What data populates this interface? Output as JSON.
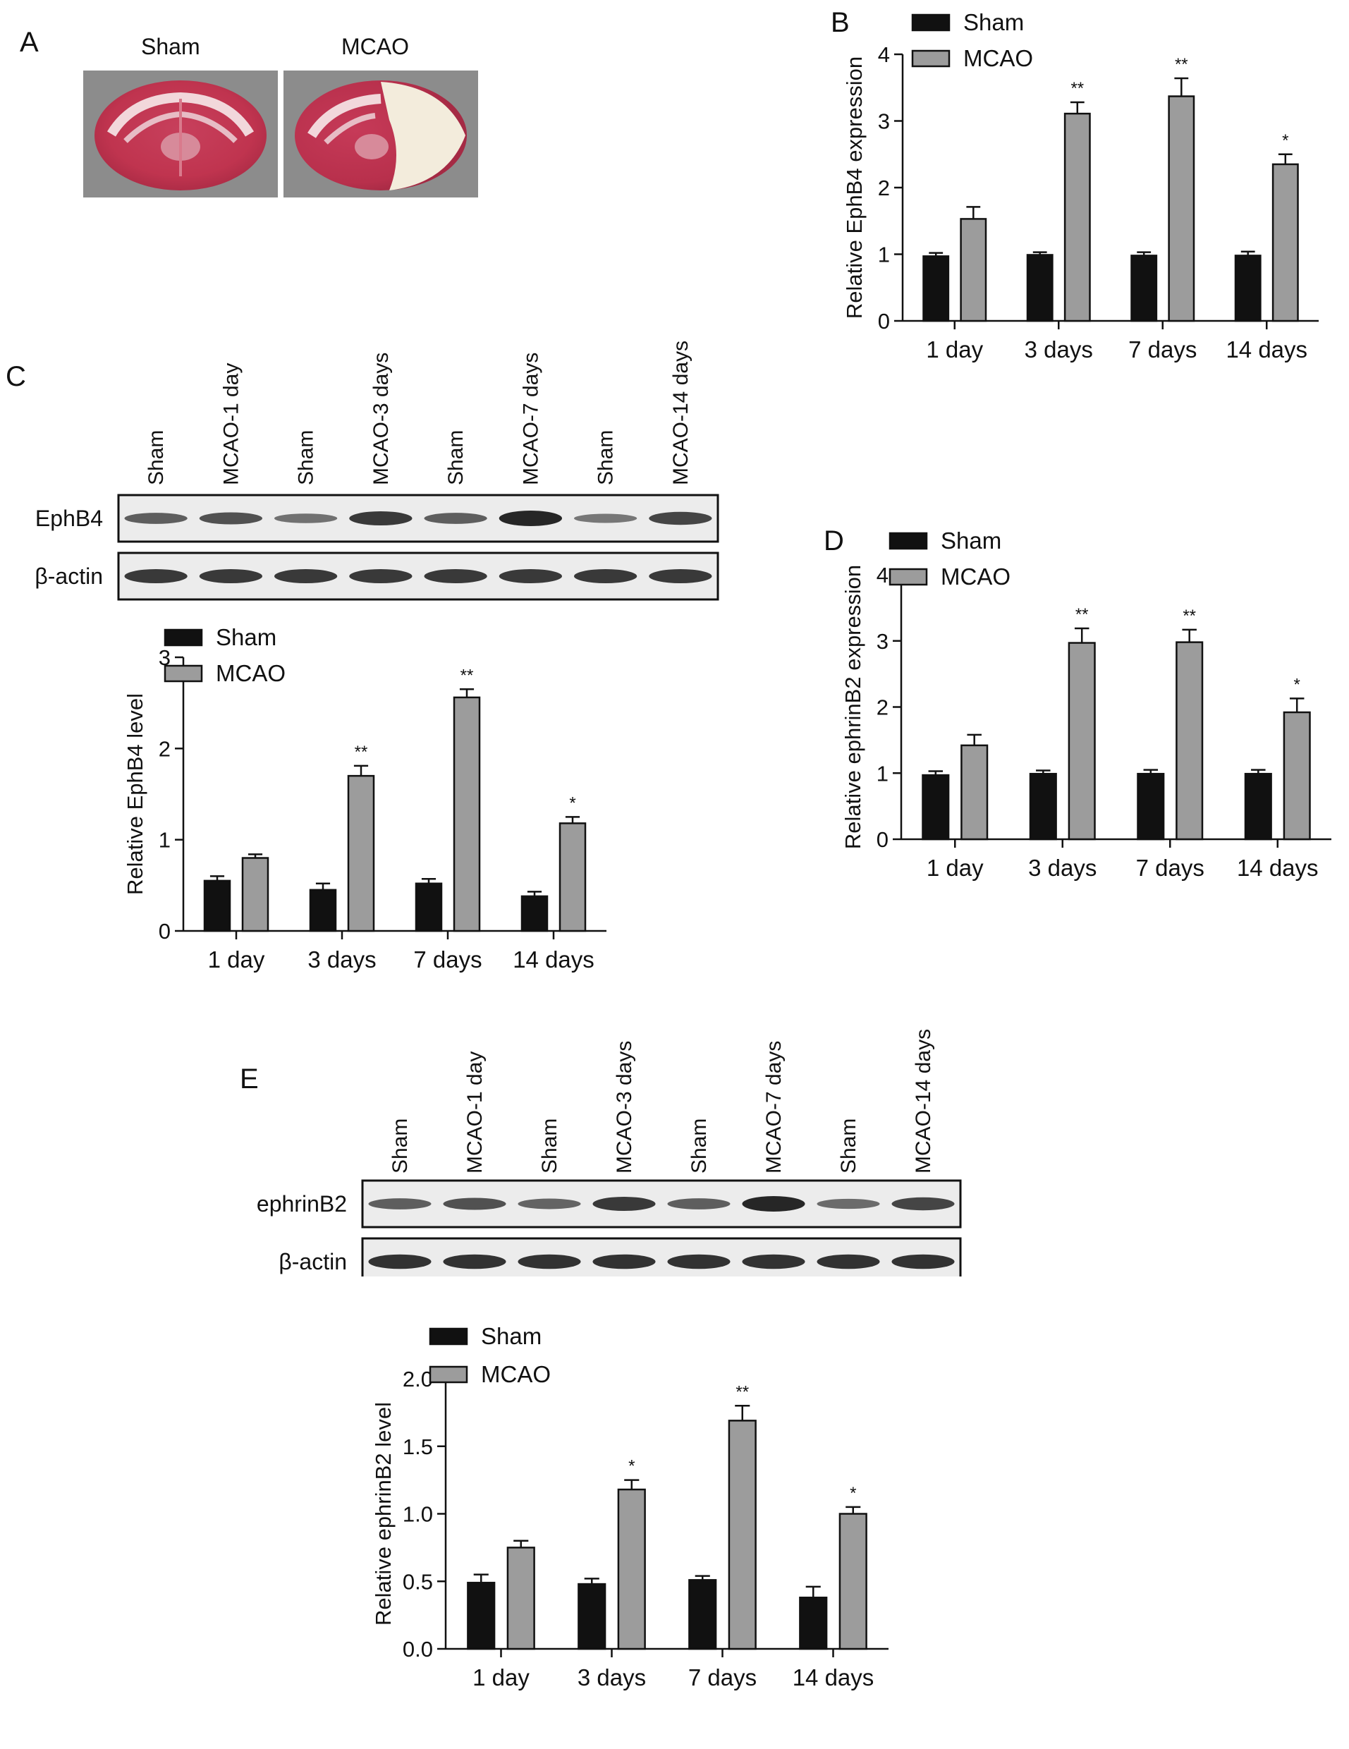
{
  "colors": {
    "sham": "#111111",
    "mcao": "#9c9c9c",
    "axis": "#111111",
    "blot_bg": "#ececec",
    "band": "#1b1b1b"
  },
  "panelA": {
    "letter": "A",
    "labels": [
      "Sham",
      "MCAO"
    ]
  },
  "blotC": {
    "letter": "C",
    "lanes": [
      "Sham",
      "MCAO-1 day",
      "Sham",
      "MCAO-3 days",
      "Sham",
      "MCAO-7 days",
      "Sham",
      "MCAO-14 days"
    ],
    "rows": [
      {
        "name": "EphB4",
        "intensity": [
          0.55,
          0.65,
          0.4,
          0.85,
          0.55,
          1.0,
          0.35,
          0.75
        ]
      },
      {
        "name": "β-actin",
        "intensity": [
          0.85,
          0.85,
          0.85,
          0.85,
          0.85,
          0.85,
          0.85,
          0.85
        ]
      }
    ]
  },
  "blotE": {
    "letter": "E",
    "lanes": [
      "Sham",
      "MCAO-1 day",
      "Sham",
      "MCAO-3 days",
      "Sham",
      "MCAO-7 days",
      "Sham",
      "MCAO-14 days"
    ],
    "rows": [
      {
        "name": "ephrinB2",
        "intensity": [
          0.55,
          0.65,
          0.5,
          0.85,
          0.55,
          1.0,
          0.45,
          0.75
        ]
      },
      {
        "name": "β-actin",
        "intensity": [
          0.9,
          0.9,
          0.9,
          0.9,
          0.9,
          0.9,
          0.9,
          0.9
        ]
      }
    ]
  },
  "chart_data": [
    {
      "id": "B",
      "letter": "B",
      "type": "bar",
      "title": "",
      "xlabel": "",
      "ylabel": "Relative EphB4 expression",
      "ylim": [
        0,
        4
      ],
      "yticks": [
        0,
        1,
        2,
        3,
        4
      ],
      "ytick_labels": [
        "0",
        "1",
        "2",
        "3",
        "4"
      ],
      "categories": [
        "1 day",
        "3 days",
        "7 days",
        "14 days"
      ],
      "legend": "top-left",
      "series": [
        {
          "name": "Sham",
          "values": [
            0.97,
            0.99,
            0.98,
            0.98
          ],
          "errors": [
            0.05,
            0.04,
            0.05,
            0.06
          ]
        },
        {
          "name": "MCAO",
          "values": [
            1.53,
            3.11,
            3.37,
            2.35
          ],
          "errors": [
            0.18,
            0.17,
            0.27,
            0.15
          ],
          "significance": [
            "",
            "**",
            "**",
            "*"
          ]
        }
      ]
    },
    {
      "id": "C",
      "letter": "",
      "type": "bar",
      "title": "",
      "xlabel": "",
      "ylabel": "Relative EphB4 level",
      "ylim": [
        0,
        3
      ],
      "yticks": [
        0,
        1,
        2,
        3
      ],
      "ytick_labels": [
        "0",
        "1",
        "2",
        "3"
      ],
      "categories": [
        "1 day",
        "3 days",
        "7 days",
        "14 days"
      ],
      "legend": "top-left",
      "series": [
        {
          "name": "Sham",
          "values": [
            0.55,
            0.45,
            0.52,
            0.38
          ],
          "errors": [
            0.05,
            0.07,
            0.05,
            0.05
          ]
        },
        {
          "name": "MCAO",
          "values": [
            0.8,
            1.7,
            2.56,
            1.18
          ],
          "errors": [
            0.04,
            0.11,
            0.09,
            0.07
          ],
          "significance": [
            "",
            "**",
            "**",
            "*"
          ]
        }
      ]
    },
    {
      "id": "D",
      "letter": "D",
      "type": "bar",
      "title": "",
      "xlabel": "",
      "ylabel": "Relative ephrinB2 expression",
      "ylim": [
        0,
        4
      ],
      "yticks": [
        0,
        1,
        2,
        3,
        4
      ],
      "ytick_labels": [
        "0",
        "1",
        "2",
        "3",
        "4"
      ],
      "categories": [
        "1 day",
        "3 days",
        "7 days",
        "14 days"
      ],
      "legend": "top-left",
      "series": [
        {
          "name": "Sham",
          "values": [
            0.97,
            0.99,
            0.99,
            0.99
          ],
          "errors": [
            0.06,
            0.05,
            0.06,
            0.06
          ]
        },
        {
          "name": "MCAO",
          "values": [
            1.42,
            2.97,
            2.98,
            1.92
          ],
          "errors": [
            0.16,
            0.22,
            0.19,
            0.21
          ],
          "significance": [
            "",
            "**",
            "**",
            "*"
          ]
        }
      ]
    },
    {
      "id": "E",
      "letter": "",
      "type": "bar",
      "title": "",
      "xlabel": "",
      "ylabel": "Relative ephrinB2 level",
      "ylim": [
        0,
        2
      ],
      "yticks": [
        0,
        0.5,
        1,
        1.5,
        2
      ],
      "ytick_labels": [
        "0.0",
        "0.5",
        "1.0",
        "1.5",
        "2.0"
      ],
      "categories": [
        "1 day",
        "3 days",
        "7 days",
        "14 days"
      ],
      "legend": "top-left",
      "series": [
        {
          "name": "Sham",
          "values": [
            0.49,
            0.48,
            0.51,
            0.38
          ],
          "errors": [
            0.06,
            0.04,
            0.03,
            0.08
          ]
        },
        {
          "name": "MCAO",
          "values": [
            0.75,
            1.18,
            1.69,
            1.0
          ],
          "errors": [
            0.05,
            0.07,
            0.11,
            0.05
          ],
          "significance": [
            "",
            "*",
            "**",
            "*"
          ]
        }
      ]
    }
  ]
}
